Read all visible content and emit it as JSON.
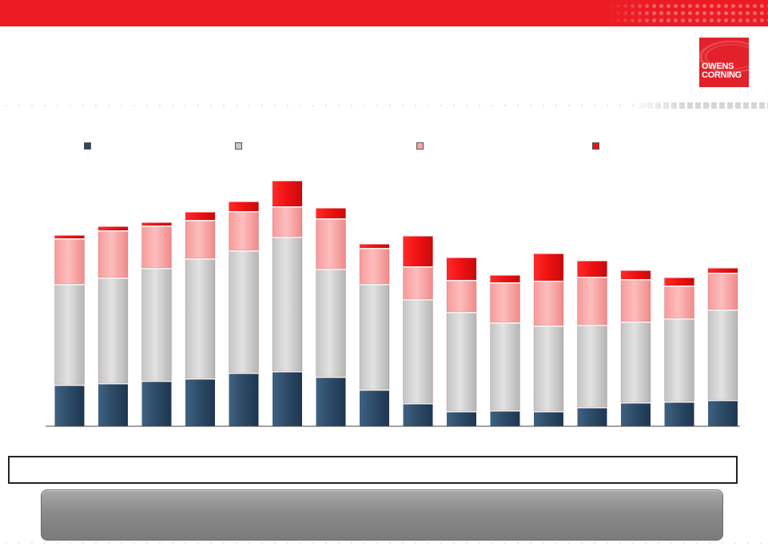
{
  "brand": {
    "logo_line1": "OWENS",
    "logo_line2": "CORNING",
    "accent_color": "#ed1c24"
  },
  "colors": {
    "series_navy": "#2d4a63",
    "series_gray": "#d4d4d4",
    "series_pink": "#fcaaaa",
    "series_red": "#ed1c24"
  },
  "legend": [
    {
      "name": "",
      "color": "#2d4a63"
    },
    {
      "name": "",
      "color": "#c8c8c8"
    },
    {
      "name": "",
      "color": "#f7a5a5"
    },
    {
      "name": "",
      "color": "#e8141c"
    }
  ],
  "note_text": "",
  "callout_text": "",
  "chart_data": {
    "type": "bar",
    "stacked": true,
    "title": "",
    "xlabel": "",
    "ylabel": "",
    "categories": [
      "",
      "",
      "",
      "",
      "",
      "",
      "",
      "",
      "",
      "",
      "",
      "",
      "",
      "",
      "",
      ""
    ],
    "ylim": [
      0,
      310
    ],
    "grid": false,
    "legend_position": "top",
    "series": [
      {
        "values": [
          52,
          54,
          57,
          60,
          67,
          69,
          62,
          46,
          29,
          19,
          20,
          19,
          24,
          30,
          31,
          33
        ]
      },
      {
        "values": [
          126,
          132,
          141,
          150,
          153,
          168,
          135,
          132,
          130,
          124,
          110,
          107,
          103,
          101,
          104,
          113
        ]
      },
      {
        "values": [
          57,
          59,
          53,
          48,
          49,
          38,
          63,
          45,
          41,
          40,
          50,
          56,
          60,
          53,
          41,
          46
        ]
      },
      {
        "values": [
          5,
          6,
          5,
          11,
          13,
          33,
          14,
          6,
          39,
          29,
          10,
          35,
          21,
          12,
          11,
          7
        ]
      }
    ]
  }
}
